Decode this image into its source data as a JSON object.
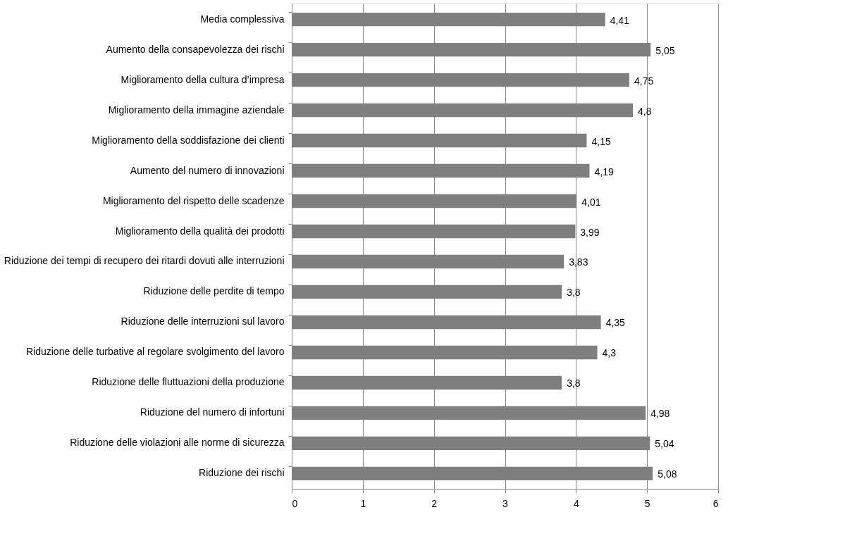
{
  "chart_data": {
    "type": "bar",
    "orientation": "horizontal",
    "categories": [
      "Media complessiva",
      "Aumento della consapevolezza dei rischi",
      "Miglioramento della cultura d’impresa",
      "Miglioramento della immagine  aziendale",
      "Miglioramento della soddisfazione dei clienti",
      "Aumento del numero di innovazioni",
      "Miglioramento del rispetto delle scadenze",
      "Miglioramento della qualità dei prodotti",
      "Riduzione dei tempi di recupero dei ritardi dovuti alle interruzioni",
      "Riduzione delle perdite di tempo",
      "Riduzione delle interruzioni sul lavoro",
      "Riduzione delle turbative al regolare svolgimento  del lavoro",
      "Riduzione delle fluttuazioni  della produzione",
      "Riduzione del numero di infortuni",
      "Riduzione delle violazioni alle norme di sicurezza",
      "Riduzione dei rischi"
    ],
    "values": [
      4.41,
      5.05,
      4.75,
      4.8,
      4.15,
      4.19,
      4.01,
      3.99,
      3.83,
      3.8,
      4.35,
      4.3,
      3.8,
      4.98,
      5.04,
      5.08
    ],
    "value_labels": [
      "4,41",
      "5,05",
      "4,75",
      "4,8",
      "4,15",
      "4,19",
      "4,01",
      "3,99",
      "3,83",
      "3,8",
      "4,35",
      "4,3",
      "3,8",
      "4,98",
      "5,04",
      "5,08"
    ],
    "color": "#7f7f7f",
    "xlim": [
      0,
      6
    ],
    "xticks": [
      0,
      1,
      2,
      3,
      4,
      5,
      6
    ],
    "grid": "x"
  }
}
